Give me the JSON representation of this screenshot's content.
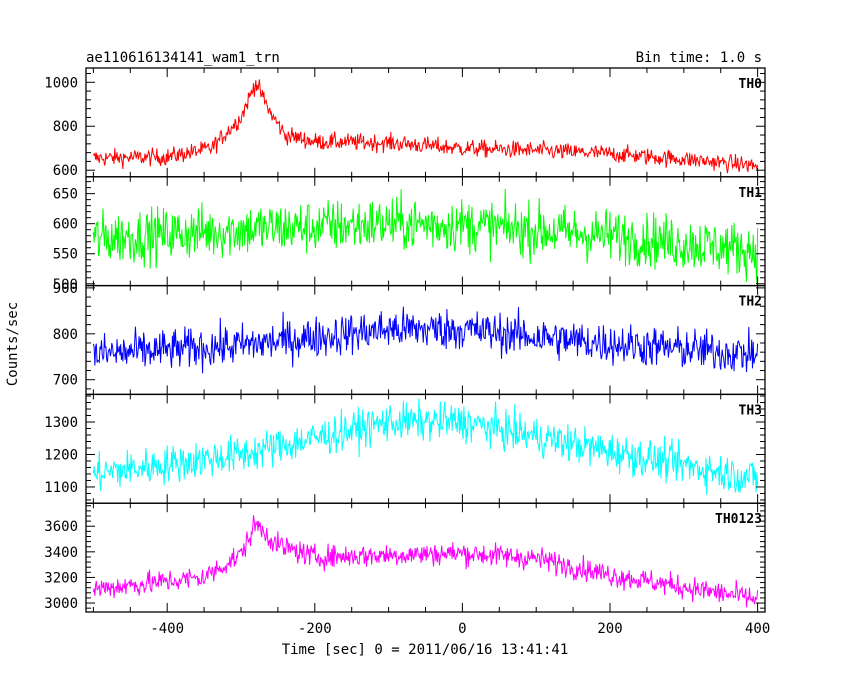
{
  "chart_data": {
    "type": "line",
    "title": "ae110616134141_wam1_trn",
    "bin_time": "Bin time: 1.0 s",
    "xlabel": "Time [sec] 0 = 2011/06/16 13:41:41",
    "ylabel": "Counts/sec",
    "xlim": [
      -510,
      410
    ],
    "x_ticks": [
      -400,
      -200,
      0,
      200,
      400
    ],
    "grid": false,
    "panels": [
      {
        "name": "TH0",
        "color": "#ff0000",
        "ylim": [
          570,
          1065
        ],
        "y_ticks": [
          600,
          800,
          1000
        ],
        "baseline": [
          [
            -500,
            655
          ],
          [
            -400,
            660
          ],
          [
            -340,
            700
          ],
          [
            -300,
            840
          ],
          [
            -280,
            1000
          ],
          [
            -260,
            860
          ],
          [
            -240,
            760
          ],
          [
            -200,
            730
          ],
          [
            -100,
            725
          ],
          [
            0,
            700
          ],
          [
            100,
            690
          ],
          [
            200,
            675
          ],
          [
            300,
            650
          ],
          [
            400,
            620
          ]
        ],
        "noise": 28
      },
      {
        "name": "TH1",
        "color": "#00ff00",
        "ylim": [
          497,
          678
        ],
        "y_ticks": [
          500,
          550,
          600,
          650
        ],
        "baseline": [
          [
            -500,
            575
          ],
          [
            -300,
            590
          ],
          [
            -100,
            600
          ],
          [
            0,
            598
          ],
          [
            200,
            580
          ],
          [
            400,
            555
          ]
        ],
        "noise": 32
      },
      {
        "name": "TH2",
        "color": "#0000ff",
        "ylim": [
          668,
          905
        ],
        "y_ticks": [
          700,
          800,
          900
        ],
        "baseline": [
          [
            -500,
            755
          ],
          [
            -300,
            775
          ],
          [
            -100,
            810
          ],
          [
            0,
            810
          ],
          [
            150,
            785
          ],
          [
            400,
            755
          ]
        ],
        "noise": 32
      },
      {
        "name": "TH3",
        "color": "#00ffff",
        "ylim": [
          1050,
          1385
        ],
        "y_ticks": [
          1100,
          1200,
          1300
        ],
        "baseline": [
          [
            -500,
            1140
          ],
          [
            -300,
            1200
          ],
          [
            -100,
            1300
          ],
          [
            0,
            1300
          ],
          [
            200,
            1210
          ],
          [
            400,
            1125
          ]
        ],
        "noise": 42
      },
      {
        "name": "TH0123",
        "color": "#ff00ff",
        "ylim": [
          2930,
          3780
        ],
        "y_ticks": [
          3000,
          3200,
          3400,
          3600
        ],
        "baseline": [
          [
            -500,
            3110
          ],
          [
            -350,
            3200
          ],
          [
            -300,
            3380
          ],
          [
            -280,
            3620
          ],
          [
            -250,
            3450
          ],
          [
            -200,
            3360
          ],
          [
            0,
            3390
          ],
          [
            100,
            3350
          ],
          [
            200,
            3220
          ],
          [
            400,
            3030
          ]
        ],
        "noise": 65
      }
    ]
  }
}
